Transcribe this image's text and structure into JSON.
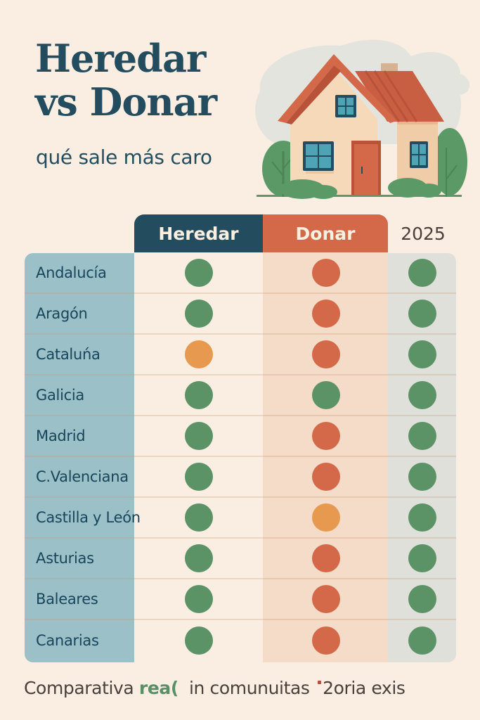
{
  "header": {
    "title_line1": "Heredar",
    "title_line2": "vs Donar",
    "subtitle": "qué sale más caro"
  },
  "illustration": {
    "subject": "house-with-trees",
    "colors": {
      "roof": "#d4694a",
      "wall": "#f6d9b8",
      "window": "#4ea3b4",
      "window_frame": "#234d5f",
      "door": "#d4694a",
      "tree": "#5b9a66",
      "cloud": "#e3e4dd"
    }
  },
  "table": {
    "columns": [
      {
        "key": "heredar",
        "label": "Heredar",
        "color": "#234d5f"
      },
      {
        "key": "donar",
        "label": "Donar",
        "color": "#d4694a"
      },
      {
        "key": "year",
        "label": "2025",
        "color": "#4b3f3a"
      }
    ],
    "status_colors": {
      "green": "#5b9266",
      "red": "#d4694a",
      "orange": "#e79a4f"
    },
    "rows": [
      {
        "region": "Andalucía",
        "heredar": "green",
        "donar": "red",
        "year": "green"
      },
      {
        "region": "Aragón",
        "heredar": "green",
        "donar": "red",
        "year": "green"
      },
      {
        "region": "Cataluńa",
        "heredar": "orange",
        "donar": "red",
        "year": "green"
      },
      {
        "region": "Galicia",
        "heredar": "green",
        "donar": "green",
        "year": "green"
      },
      {
        "region": "Madrid",
        "heredar": "green",
        "donar": "red",
        "year": "green"
      },
      {
        "region": "C.Valenciana",
        "heredar": "green",
        "donar": "red",
        "year": "green"
      },
      {
        "region": "Castilla y León",
        "heredar": "green",
        "donar": "orange",
        "year": "green"
      },
      {
        "region": "Asturias",
        "heredar": "green",
        "donar": "red",
        "year": "green"
      },
      {
        "region": "Baleares",
        "heredar": "green",
        "donar": "red",
        "year": "green"
      },
      {
        "region": "Canarias",
        "heredar": "green",
        "donar": "red",
        "year": "green"
      }
    ]
  },
  "footer": {
    "text_start": "Comparativa ",
    "text_accent": "rea(",
    "text_middle": "  in comunuitas ",
    "text_end": "2oria exis"
  }
}
